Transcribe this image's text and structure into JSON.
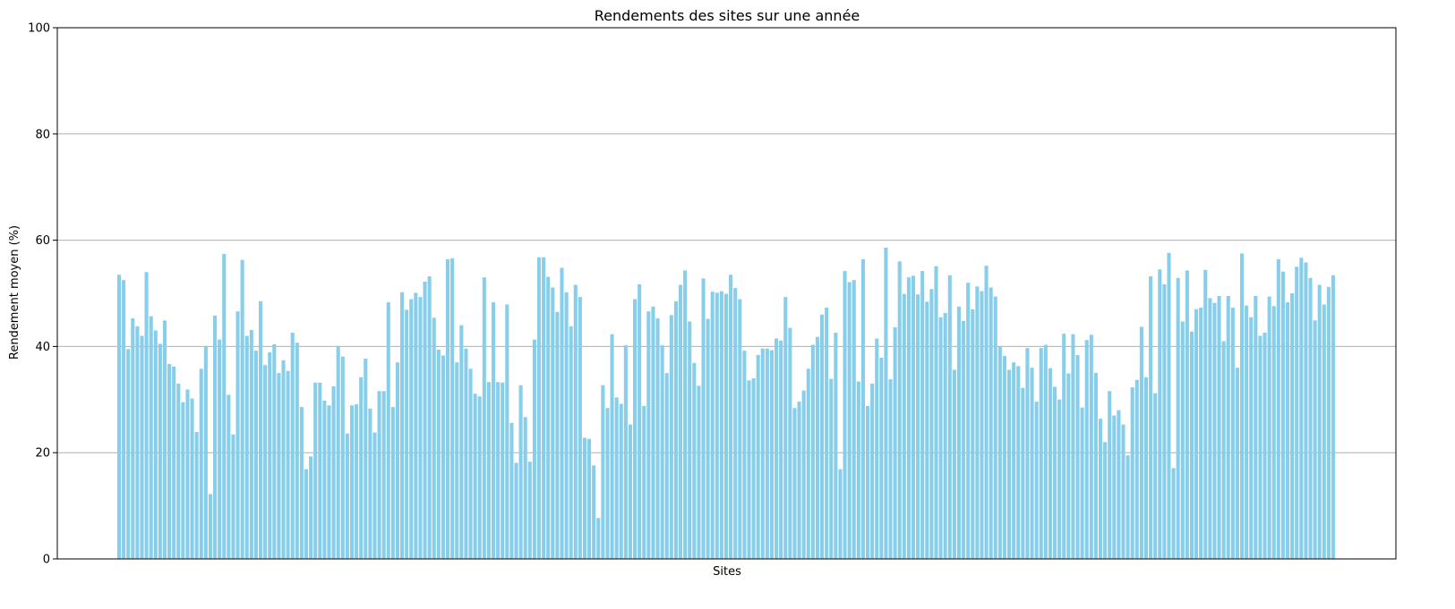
{
  "chart_data": {
    "type": "bar",
    "title": "Rendements des sites sur une année",
    "xlabel": "Sites",
    "ylabel": "Rendement moyen (%)",
    "ylim": [
      0,
      100
    ],
    "yticks": [
      0,
      20,
      40,
      60,
      80,
      100
    ],
    "grid": "y",
    "bar_color": "#87CEEB",
    "values": [
      53.5,
      52.5,
      39.5,
      45.3,
      43.8,
      42.0,
      54.0,
      45.7,
      43.0,
      40.5,
      44.9,
      36.7,
      36.2,
      33.0,
      29.5,
      31.9,
      30.2,
      23.9,
      35.8,
      40.1,
      12.2,
      45.8,
      41.3,
      57.4,
      30.9,
      23.4,
      46.6,
      56.3,
      42.0,
      43.1,
      39.2,
      48.5,
      36.5,
      38.9,
      40.4,
      35.0,
      37.4,
      35.4,
      42.6,
      40.7,
      28.6,
      16.9,
      19.3,
      33.2,
      33.2,
      29.8,
      28.9,
      32.5,
      40.1,
      38.1,
      23.6,
      28.9,
      29.1,
      34.2,
      37.7,
      28.3,
      23.8,
      31.6,
      31.6,
      48.3,
      28.6,
      37.0,
      50.2,
      46.9,
      48.9,
      50.1,
      49.3,
      52.2,
      53.2,
      45.4,
      39.4,
      38.3,
      56.4,
      56.6,
      37.0,
      44.0,
      39.6,
      35.8,
      31.1,
      30.6,
      53.0,
      33.3,
      48.3,
      33.3,
      33.2,
      47.9,
      25.6,
      18.1,
      32.7,
      26.7,
      18.3,
      41.3,
      56.8,
      56.8,
      53.1,
      51.1,
      46.5,
      54.8,
      50.2,
      43.8,
      51.6,
      49.3,
      22.8,
      22.6,
      17.6,
      7.7,
      32.7,
      28.4,
      42.3,
      30.4,
      29.2,
      40.2,
      25.3,
      48.9,
      51.7,
      28.8,
      46.6,
      47.5,
      45.3,
      40.2,
      35.0,
      45.9,
      48.5,
      51.6,
      54.3,
      44.7,
      36.9,
      32.6,
      52.8,
      45.2,
      50.3,
      50.1,
      50.4,
      49.9,
      53.5,
      51.0,
      48.9,
      39.2,
      33.6,
      34.0,
      38.4,
      39.6,
      39.6,
      39.3,
      41.5,
      41.1,
      49.3,
      43.5,
      28.4,
      29.6,
      31.7,
      35.8,
      40.3,
      41.8,
      46.0,
      47.3,
      33.9,
      42.6,
      16.9,
      54.2,
      52.1,
      52.5,
      33.4,
      56.4,
      28.8,
      33.0,
      41.5,
      37.9,
      58.6,
      33.8,
      43.6,
      56.0,
      49.9,
      53.0,
      53.3,
      49.8,
      54.2,
      48.4,
      50.8,
      55.1,
      45.5,
      46.3,
      53.4,
      35.6,
      47.5,
      44.8,
      52.0,
      47.0,
      51.3,
      50.4,
      55.2,
      51.1,
      49.4,
      40.1,
      38.2,
      35.6,
      37.0,
      36.3,
      32.2,
      39.7,
      36.0,
      29.6,
      39.7,
      40.3,
      35.9,
      32.4,
      30.0,
      42.4,
      34.9,
      42.3,
      38.4,
      28.5,
      41.2,
      42.2,
      35.0,
      26.4,
      22.0,
      31.6,
      27.0,
      28.0,
      25.3,
      19.5,
      32.3,
      33.7,
      43.7,
      34.2,
      53.2,
      31.2,
      54.5,
      51.7,
      57.6,
      17.1,
      52.9,
      44.7,
      54.3,
      42.8,
      47.0,
      47.3,
      54.4,
      49.1,
      48.2,
      49.5,
      41.0,
      49.5,
      47.3,
      36.0,
      57.5,
      47.7,
      45.5,
      49.5,
      42.0,
      42.6,
      49.4,
      47.6,
      56.4,
      54.1,
      48.3,
      50.0,
      55.0,
      56.7,
      55.8,
      52.9,
      44.9,
      51.6,
      47.9,
      51.2,
      53.4
    ]
  }
}
